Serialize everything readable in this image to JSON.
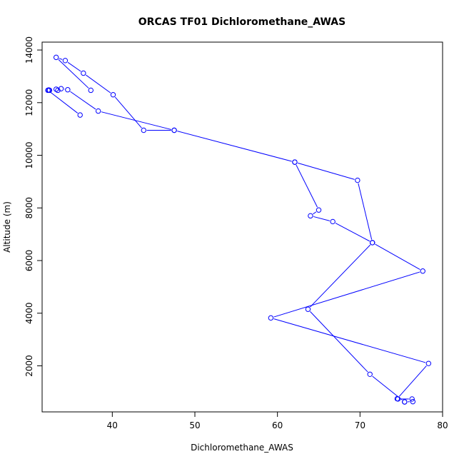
{
  "chart_data": {
    "type": "line",
    "title": "ORCAS TF01 Dichloromethane_AWAS",
    "xlabel": "Dichloromethane_AWAS",
    "ylabel": "Altitude (m)",
    "xlim": [
      31.5,
      80
    ],
    "ylim": [
      250,
      14300
    ],
    "x_ticks": [
      40,
      50,
      60,
      70,
      80
    ],
    "y_ticks": [
      2000,
      4000,
      6000,
      8000,
      10000,
      12000,
      14000
    ],
    "grid": false,
    "legend": "none",
    "series": [
      {
        "color": "#0000ff",
        "marker": "open-circle",
        "points": [
          {
            "x": 75.4,
            "y": 630
          },
          {
            "x": 76.4,
            "y": 640
          },
          {
            "x": 76.3,
            "y": 740
          },
          {
            "x": 74.6,
            "y": 740
          },
          {
            "x": 74.5,
            "y": 750
          },
          {
            "x": 78.3,
            "y": 2090
          },
          {
            "x": 59.2,
            "y": 3820
          },
          {
            "x": 77.6,
            "y": 5600
          },
          {
            "x": 71.5,
            "y": 6680
          },
          {
            "x": 63.7,
            "y": 4150
          },
          {
            "x": 71.2,
            "y": 1680
          },
          {
            "x": 75.4,
            "y": 630
          }
        ]
      },
      {
        "color": "#0000ff",
        "marker": "open-circle",
        "points": [
          {
            "x": 71.5,
            "y": 6680
          },
          {
            "x": 69.7,
            "y": 9050
          },
          {
            "x": 62.1,
            "y": 9740
          },
          {
            "x": 65.0,
            "y": 7920
          },
          {
            "x": 64.0,
            "y": 7700
          },
          {
            "x": 66.7,
            "y": 7480
          },
          {
            "x": 71.5,
            "y": 6680
          }
        ]
      },
      {
        "color": "#0000ff",
        "marker": "open-circle",
        "points": [
          {
            "x": 62.1,
            "y": 9740
          },
          {
            "x": 47.5,
            "y": 10950
          },
          {
            "x": 43.8,
            "y": 10950
          },
          {
            "x": 40.1,
            "y": 12300
          },
          {
            "x": 36.5,
            "y": 13120
          },
          {
            "x": 34.3,
            "y": 13600
          },
          {
            "x": 33.2,
            "y": 13720
          },
          {
            "x": 37.4,
            "y": 12470
          }
        ]
      },
      {
        "color": "#0000ff",
        "marker": "open-circle",
        "points": [
          {
            "x": 47.5,
            "y": 10950
          },
          {
            "x": 38.3,
            "y": 11680
          },
          {
            "x": 34.6,
            "y": 12490
          },
          {
            "x": 33.8,
            "y": 12530
          },
          {
            "x": 33.2,
            "y": 12510
          },
          {
            "x": 33.4,
            "y": 12470
          }
        ]
      },
      {
        "color": "#0000ff",
        "marker": "open-circle",
        "points": [
          {
            "x": 32.3,
            "y": 12480
          },
          {
            "x": 32.4,
            "y": 12470
          },
          {
            "x": 32.2,
            "y": 12470
          },
          {
            "x": 36.1,
            "y": 11530
          }
        ]
      }
    ]
  }
}
